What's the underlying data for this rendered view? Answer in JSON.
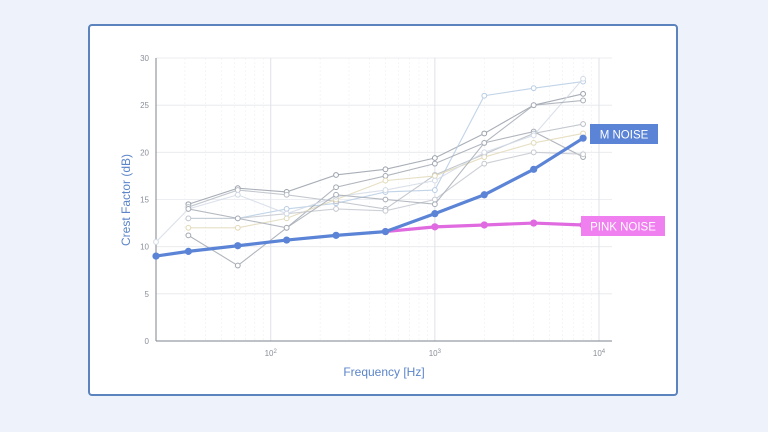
{
  "chart_data": {
    "type": "line",
    "xscale": "log",
    "xlabel": "Frequency [Hz]",
    "ylabel": "Crest Factor (dB)",
    "xlim": [
      20,
      12000
    ],
    "ylim": [
      0,
      30
    ],
    "y_ticks": [
      "0",
      "5",
      "10",
      "15",
      "20",
      "25",
      "30"
    ],
    "x_ticks": [
      {
        "value": 100,
        "base": "10",
        "exp": "2"
      },
      {
        "value": 1000,
        "base": "10",
        "exp": "3"
      },
      {
        "value": 10000,
        "base": "10",
        "exp": "4"
      }
    ],
    "grid": true,
    "highlight_series": [
      {
        "name": "M NOISE",
        "color": "#5b84d6",
        "label_bg": "#5b84d6",
        "label_fg": "#ffffff",
        "x": [
          20,
          31.5,
          63,
          125,
          250,
          500,
          1000,
          2000,
          4000,
          8000
        ],
        "y": [
          9.0,
          9.5,
          10.1,
          10.7,
          11.2,
          11.6,
          13.5,
          15.5,
          18.2,
          21.5
        ]
      },
      {
        "name": "PINK NOISE",
        "color": "#e06ae0",
        "label_bg": "#f07ff0",
        "label_fg": "#ffffff",
        "x": [
          500,
          1000,
          2000,
          4000,
          8000
        ],
        "y": [
          11.6,
          12.1,
          12.3,
          12.5,
          12.3
        ]
      }
    ],
    "background_series": [
      {
        "color": "#9aa0aa",
        "x": [
          31.5,
          63,
          125,
          250,
          500,
          1000,
          2000,
          4000,
          8000
        ],
        "y": [
          14.5,
          16.2,
          15.8,
          17.6,
          18.2,
          19.4,
          22.0,
          25.0,
          26.2
        ]
      },
      {
        "color": "#b7cce4",
        "x": [
          31.5,
          63,
          125,
          250,
          500,
          1000,
          2000,
          4000,
          8000
        ],
        "y": [
          13.0,
          13.0,
          14.0,
          14.6,
          15.8,
          16.0,
          26.0,
          26.8,
          27.5
        ]
      },
      {
        "color": "#a3a8b2",
        "x": [
          31.5,
          63,
          125,
          250,
          500,
          1000,
          2000,
          4000,
          8000
        ],
        "y": [
          11.2,
          8.0,
          12.0,
          16.3,
          17.5,
          18.8,
          21.0,
          22.2,
          19.5
        ]
      },
      {
        "color": "#b9bec6",
        "x": [
          31.5,
          63,
          125,
          250,
          500,
          1000,
          2000,
          4000,
          8000
        ],
        "y": [
          14.2,
          16.0,
          15.5,
          14.8,
          14.0,
          17.6,
          19.8,
          22.0,
          23.0
        ]
      },
      {
        "color": "#e2d9b8",
        "x": [
          31.5,
          63,
          125,
          250,
          500,
          1000,
          2000,
          4000,
          8000
        ],
        "y": [
          12.0,
          12.0,
          13.0,
          15.0,
          17.0,
          17.5,
          19.5,
          21.0,
          22.0
        ]
      },
      {
        "color": "#c4c8cf",
        "x": [
          31.5,
          63,
          125,
          250,
          500,
          1000,
          2000,
          4000,
          8000
        ],
        "y": [
          13.0,
          13.0,
          13.5,
          14.0,
          13.8,
          15.0,
          18.8,
          20.0,
          19.8
        ]
      },
      {
        "color": "#d3dae6",
        "x": [
          20,
          31.5,
          63,
          125,
          250,
          500,
          1000,
          2000,
          4000,
          8000
        ],
        "y": [
          10.5,
          14.0,
          15.5,
          13.5,
          15.3,
          16.0,
          17.0,
          20.0,
          21.8,
          27.8
        ]
      },
      {
        "color": "#a7adb6",
        "x": [
          31.5,
          63,
          125,
          250,
          500,
          1000,
          2000,
          4000,
          8000
        ],
        "y": [
          14.0,
          13.0,
          12.0,
          15.5,
          15.0,
          14.5,
          21.0,
          25.0,
          25.5
        ]
      }
    ]
  }
}
